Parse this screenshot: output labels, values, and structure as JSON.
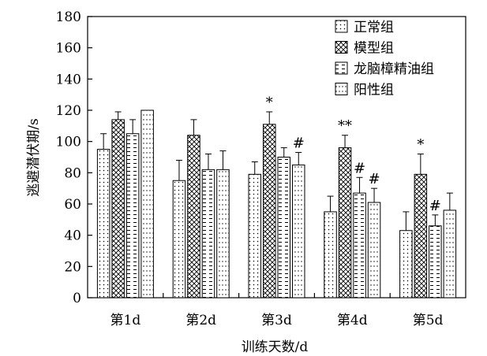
{
  "chart_data": {
    "type": "bar",
    "title": "",
    "xlabel": "训练天数/d",
    "ylabel": "逃避潜伏期/s",
    "ylim": [
      0,
      180
    ],
    "yticks": [
      0,
      20,
      40,
      60,
      80,
      100,
      120,
      140,
      160,
      180
    ],
    "grid": false,
    "legend_position": "top-right",
    "categories": [
      "第1d",
      "第2d",
      "第3d",
      "第4d",
      "第5d"
    ],
    "series": [
      {
        "name": "正常组",
        "pattern": "dots",
        "values": [
          95,
          75,
          79,
          55,
          43
        ],
        "errors": [
          10,
          13,
          8,
          10,
          12
        ],
        "annotations": [
          "",
          "",
          "",
          "",
          ""
        ]
      },
      {
        "name": "模型组",
        "pattern": "crosshatch",
        "values": [
          114,
          104,
          111,
          96,
          79
        ],
        "errors": [
          5,
          10,
          8,
          8,
          13
        ],
        "annotations": [
          "",
          "",
          "*",
          "**",
          "*"
        ]
      },
      {
        "name": "龙脑樟精油组",
        "pattern": "dashes",
        "values": [
          105,
          82,
          90,
          67,
          46
        ],
        "errors": [
          9,
          10,
          6,
          10,
          7
        ],
        "annotations": [
          "",
          "",
          "",
          "#",
          "#"
        ]
      },
      {
        "name": "阳性组",
        "pattern": "vdots",
        "values": [
          120,
          82,
          85,
          61,
          56
        ],
        "errors": [
          0,
          12,
          8,
          9,
          11
        ],
        "annotations": [
          "",
          "",
          "#",
          "#",
          ""
        ]
      }
    ]
  }
}
